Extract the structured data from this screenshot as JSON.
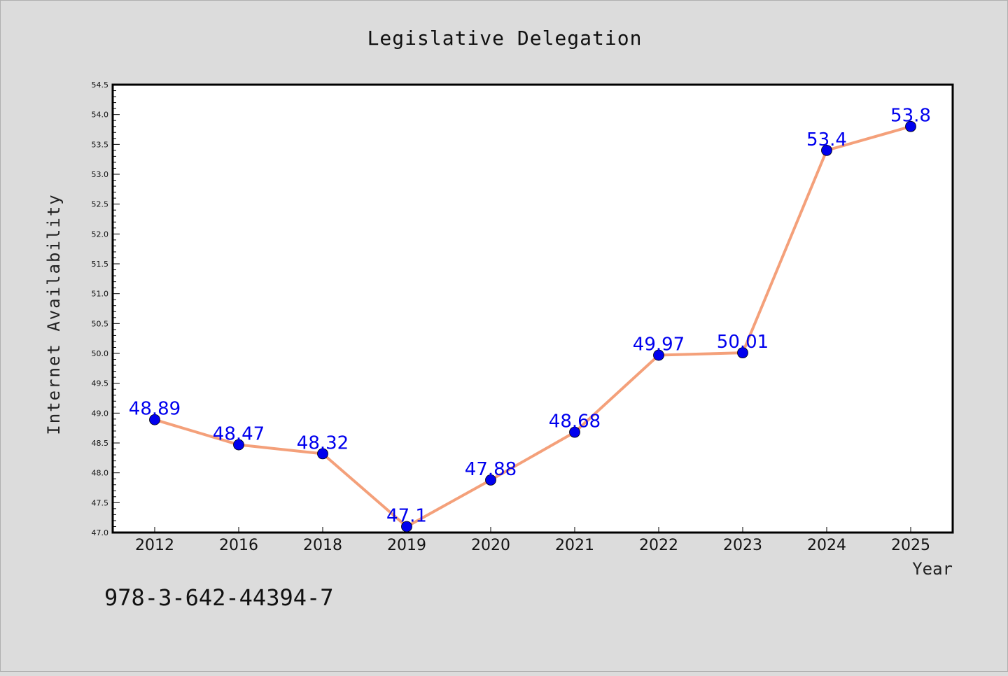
{
  "chart_data": {
    "type": "line",
    "title": "Legislative Delegation",
    "xlabel": "Year",
    "ylabel": "Internet Availability",
    "categories": [
      "2012",
      "2016",
      "2018",
      "2019",
      "2020",
      "2021",
      "2022",
      "2023",
      "2024",
      "2025"
    ],
    "series": [
      {
        "values": [
          48.89,
          48.47,
          48.32,
          47.1,
          47.88,
          48.68,
          49.97,
          50.01,
          53.4,
          53.8
        ],
        "data_labels": [
          "48.89",
          "48.47",
          "48.32",
          "47.1",
          "47.88",
          "48.68",
          "49.97",
          "50.01",
          "53.4",
          "53.8"
        ],
        "line_color": "#f4a07a",
        "marker_color": "#0000ee",
        "label_color": "#0000ee"
      }
    ],
    "ylim": [
      47.0,
      54.5
    ],
    "yticks": [
      "47.0",
      "47.5",
      "48.0",
      "48.5",
      "49.0",
      "49.5",
      "50.0",
      "50.5",
      "51.0",
      "51.5",
      "52.0",
      "52.5",
      "53.0",
      "53.5",
      "54.0",
      "54.5"
    ],
    "grid": false,
    "legend": "none"
  },
  "footer": {
    "isbn": "978-3-642-44394-7"
  },
  "colors": {
    "background": "#dcdcdc",
    "plot_area": "#ffffff",
    "axis": "#000000"
  }
}
